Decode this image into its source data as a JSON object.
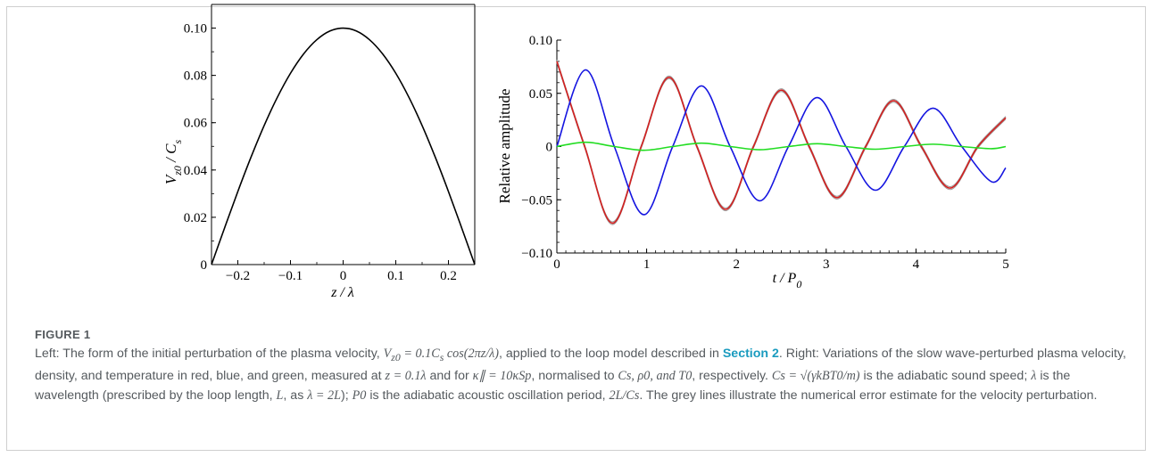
{
  "figure_label": "FIGURE 1",
  "caption": {
    "p1": "Left: The form of the initial perturbation of the plasma velocity, ",
    "m1": "V",
    "m1sub": "z0",
    "m1rest": " = 0.1C",
    "m1sub2": "s",
    "m1rest2": " cos(2πz/λ)",
    "p2": ", applied to the loop model described in ",
    "link": "Section 2",
    "p3": ". Right: Variations of the slow wave-perturbed plasma velocity, density, and temperature in red, blue, and green, measured at ",
    "m2": "z = 0.1λ",
    "p4": " and for ",
    "m3": "κ∥ = 10κSp",
    "p5": ", normalised to ",
    "m4": "Cs, ρ0, and T0",
    "p6": ", respectively. ",
    "m5": "Cs = √(γkBT0/m)",
    "p7": " is the adiabatic sound speed; ",
    "m6": "λ",
    "p8": " is the wavelength (prescribed by the loop length, ",
    "m7": "L",
    "p9": ", as ",
    "m8": "λ = 2L",
    "p10": "); ",
    "m9": "P0",
    "p11": " is the adiabatic acoustic oscillation period, ",
    "m10": "2L/Cs",
    "p12": ". The grey lines illustrate the numerical error estimate for the velocity perturbation."
  },
  "chart_data": [
    {
      "type": "line",
      "xlabel": "z / λ",
      "ylabel": "V z0 / C s",
      "xlim": [
        -0.25,
        0.25
      ],
      "ylim": [
        0,
        0.11
      ],
      "xticks": [
        -0.2,
        -0.1,
        0,
        0.1,
        0.2
      ],
      "xtick_labels": [
        "−0.2",
        "−0.1",
        "0",
        "0.1",
        "0.2"
      ],
      "yticks": [
        0,
        0.02,
        0.04,
        0.06,
        0.08,
        0.1
      ],
      "ytick_labels": [
        "0",
        "0.02",
        "0.04",
        "0.06",
        "0.08",
        "0.10"
      ],
      "series": [
        {
          "color": "#000000",
          "x": [
            -0.25,
            -0.225,
            -0.2,
            -0.175,
            -0.15,
            -0.125,
            -0.1,
            -0.075,
            -0.05,
            -0.025,
            0,
            0.025,
            0.05,
            0.075,
            0.1,
            0.125,
            0.15,
            0.175,
            0.2,
            0.225,
            0.25
          ],
          "y": [
            0,
            0.0156,
            0.0309,
            0.0454,
            0.0588,
            0.0707,
            0.0809,
            0.0891,
            0.0951,
            0.0988,
            0.1,
            0.0988,
            0.0951,
            0.0891,
            0.0809,
            0.0707,
            0.0588,
            0.0454,
            0.0309,
            0.0156,
            0
          ]
        }
      ]
    },
    {
      "type": "line",
      "xlabel": "t / P 0",
      "ylabel": "Relative amplitude",
      "xlim": [
        0,
        5
      ],
      "ylim": [
        -0.1,
        0.1
      ],
      "xticks": [
        0,
        1,
        2,
        3,
        4,
        5
      ],
      "xtick_labels": [
        "0",
        "1",
        "2",
        "3",
        "4",
        "5"
      ],
      "yticks": [
        -0.1,
        -0.05,
        0,
        0.05,
        0.1
      ],
      "ytick_labels": [
        "−0.10",
        "−0.05",
        "0",
        "0.05",
        "0.10"
      ],
      "series": [
        {
          "name": "velocity",
          "color": "#d42020",
          "x": [
            0,
            0.31,
            0.62,
            0.94,
            1.25,
            1.56,
            1.88,
            2.19,
            2.5,
            2.81,
            3.12,
            3.44,
            3.75,
            4.06,
            4.38,
            4.69,
            5
          ],
          "y": [
            0.08,
            0.0,
            -0.072,
            0.0,
            0.065,
            0.0,
            -0.059,
            0.0,
            0.053,
            0.0,
            -0.048,
            0.0,
            0.043,
            0.0,
            -0.039,
            0.0,
            0.027
          ]
        },
        {
          "name": "density",
          "color": "#1515e0",
          "x": [
            0,
            0.32,
            0.64,
            0.97,
            1.29,
            1.61,
            1.93,
            2.26,
            2.58,
            2.9,
            3.22,
            3.55,
            3.87,
            4.19,
            4.51,
            4.84,
            5
          ],
          "y": [
            0.0,
            0.072,
            0.0,
            -0.064,
            0.0,
            0.057,
            0.0,
            -0.051,
            0.0,
            0.046,
            0.0,
            -0.041,
            0.0,
            0.036,
            0.0,
            -0.033,
            -0.02
          ]
        },
        {
          "name": "temperature",
          "color": "#22dd22",
          "x": [
            0,
            0.32,
            0.64,
            0.97,
            1.29,
            1.61,
            1.93,
            2.26,
            2.58,
            2.9,
            3.22,
            3.55,
            3.87,
            4.19,
            4.51,
            4.84,
            5
          ],
          "y": [
            0.0,
            0.004,
            0.0,
            -0.0035,
            0.0,
            0.0032,
            0.0,
            -0.003,
            0.0,
            0.0027,
            0.0,
            -0.0025,
            0.0,
            0.0022,
            0.0,
            -0.002,
            0.0
          ]
        }
      ]
    }
  ]
}
